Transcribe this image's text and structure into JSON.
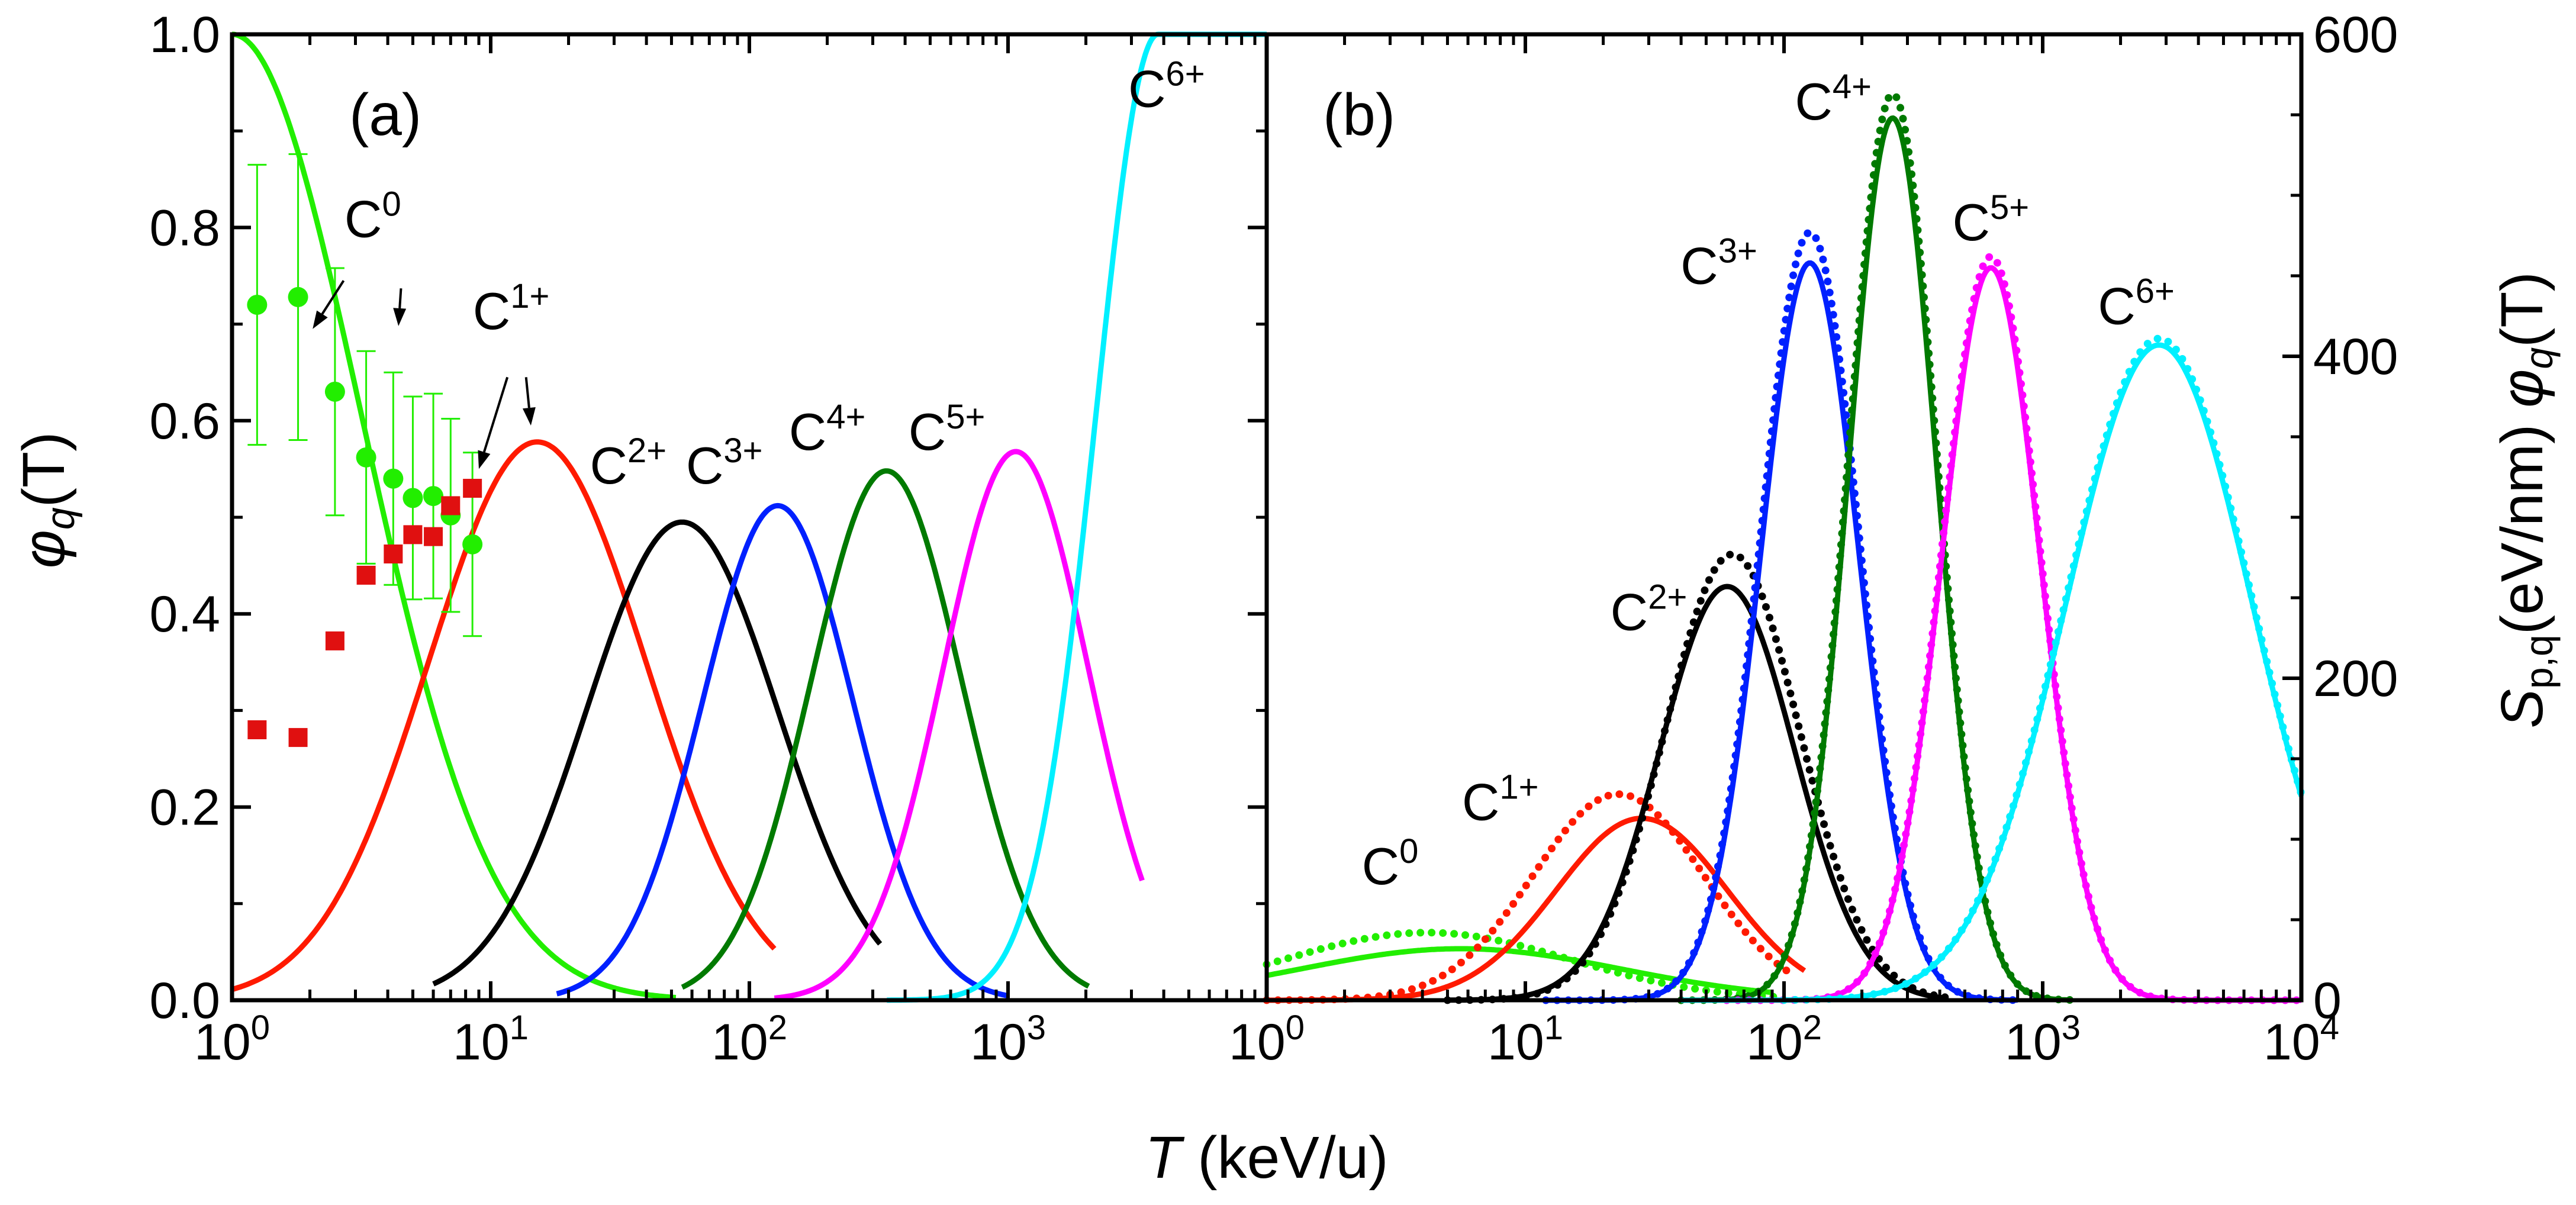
{
  "chart_data": [
    {
      "panel": "(a)",
      "type": "line",
      "xlabel_italic": "T",
      "xlabel_rest": " (keV/u)",
      "ylabel_symbol": "φ",
      "ylabel_sub": "q",
      "ylabel_rest": "(T)",
      "xscale": "log",
      "xlim": [
        1,
        10000
      ],
      "ylim": [
        0,
        1.0
      ],
      "x_ticks": [
        {
          "value": 1,
          "base": "10",
          "exp": "0"
        },
        {
          "value": 10,
          "base": "10",
          "exp": "1"
        },
        {
          "value": 100,
          "base": "10",
          "exp": "2"
        },
        {
          "value": 1000,
          "base": "10",
          "exp": "3"
        }
      ],
      "y_ticks": [
        {
          "value": 0.0,
          "label": "0.0"
        },
        {
          "value": 0.2,
          "label": "0.2"
        },
        {
          "value": 0.4,
          "label": "0.4"
        },
        {
          "value": 0.6,
          "label": "0.6"
        },
        {
          "value": 0.8,
          "label": "0.8"
        },
        {
          "value": 1.0,
          "label": "1.0"
        }
      ],
      "series": [
        {
          "name": "C0",
          "color": "#22ee00",
          "log_center": 0.0,
          "peak": 1.0,
          "sigma": 0.5,
          "left_flat": true,
          "x_min": 1,
          "x_max": 52
        },
        {
          "name": "C1+",
          "color": "#ff1a00",
          "log_center": 1.18,
          "peak": 0.578,
          "sigma": 0.42,
          "x_min": 1,
          "x_max": 125
        },
        {
          "name": "C2+",
          "color": "#000000",
          "log_center": 1.74,
          "peak": 0.495,
          "sigma": 0.37,
          "x_min": 6,
          "x_max": 320
        },
        {
          "name": "C3+",
          "color": "#0020ff",
          "log_center": 2.11,
          "peak": 0.512,
          "sigma": 0.29,
          "x_min": 18,
          "x_max": 1000
        },
        {
          "name": "C4+",
          "color": "#007a00",
          "log_center": 2.53,
          "peak": 0.548,
          "sigma": 0.29,
          "x_min": 55,
          "x_max": 2050
        },
        {
          "name": "C5+",
          "color": "#ff00ff",
          "log_center": 3.03,
          "peak": 0.568,
          "sigma": 0.28,
          "x_min": 125,
          "x_max": 3300
        },
        {
          "name": "C6+",
          "color": "#00f0ff",
          "log_center": 3.58,
          "peak": 1.0,
          "sigma": 0.24,
          "right_flat": true,
          "x_min": 340,
          "x_max": 10000
        }
      ],
      "scatter_series": [
        {
          "name": "C0 experiment",
          "color": "#22ee00",
          "marker": "circle",
          "points": [
            {
              "x": 1.25,
              "y": 0.72,
              "err": 0.145
            },
            {
              "x": 1.8,
              "y": 0.728,
              "err": 0.148
            },
            {
              "x": 2.5,
              "y": 0.63,
              "err": 0.128
            },
            {
              "x": 3.3,
              "y": 0.562,
              "err": 0.11
            },
            {
              "x": 4.2,
              "y": 0.54,
              "err": 0.11
            },
            {
              "x": 5.0,
              "y": 0.52,
              "err": 0.105
            },
            {
              "x": 6.0,
              "y": 0.522,
              "err": 0.106
            },
            {
              "x": 7.0,
              "y": 0.502,
              "err": 0.1
            },
            {
              "x": 8.5,
              "y": 0.472,
              "err": 0.095
            }
          ]
        },
        {
          "name": "C1+ experiment",
          "color": "#e01010",
          "marker": "square",
          "points": [
            {
              "x": 1.25,
              "y": 0.28
            },
            {
              "x": 1.8,
              "y": 0.272
            },
            {
              "x": 2.5,
              "y": 0.372
            },
            {
              "x": 3.3,
              "y": 0.44
            },
            {
              "x": 4.2,
              "y": 0.462
            },
            {
              "x": 5.0,
              "y": 0.482
            },
            {
              "x": 6.0,
              "y": 0.48
            },
            {
              "x": 7.0,
              "y": 0.512
            },
            {
              "x": 8.5,
              "y": 0.53
            }
          ]
        }
      ],
      "labels": [
        {
          "base": "C",
          "sup": "0",
          "x": 3.5,
          "y": 0.79
        },
        {
          "base": "C",
          "sup": "1+",
          "x": 12,
          "y": 0.695
        },
        {
          "base": "C",
          "sup": "2+",
          "x": 34,
          "y": 0.535
        },
        {
          "base": "C",
          "sup": "3+",
          "x": 80,
          "y": 0.535
        },
        {
          "base": "C",
          "sup": "4+",
          "x": 200,
          "y": 0.57
        },
        {
          "base": "C",
          "sup": "5+",
          "x": 580,
          "y": 0.57
        },
        {
          "base": "C",
          "sup": "6+",
          "x": 4100,
          "y": 0.925
        }
      ],
      "arrows": [
        {
          "from": [
            2.7,
            0.745
          ],
          "to": [
            2.05,
            0.695
          ]
        },
        {
          "from": [
            4.5,
            0.737
          ],
          "to": [
            4.4,
            0.698
          ]
        },
        {
          "from": [
            11.6,
            0.645
          ],
          "to": [
            9.0,
            0.55
          ]
        },
        {
          "from": [
            13.7,
            0.645
          ],
          "to": [
            14.3,
            0.595
          ]
        }
      ]
    },
    {
      "panel": "(b)",
      "type": "line",
      "xlabel_italic": "T",
      "xlabel_rest": " (keV/u)",
      "ylabel_main": "S",
      "ylabel_sub1": "p,q",
      "ylabel_mid": "(eV/nm) ",
      "ylabel_symbol": "φ",
      "ylabel_sub2": "q",
      "ylabel_rest": "(T)",
      "xscale": "log",
      "xlim": [
        1,
        10000
      ],
      "ylim": [
        0,
        600
      ],
      "y_axis_side": "right",
      "x_ticks": [
        {
          "value": 1,
          "base": "10",
          "exp": "0"
        },
        {
          "value": 10,
          "base": "10",
          "exp": "1"
        },
        {
          "value": 100,
          "base": "10",
          "exp": "2"
        },
        {
          "value": 1000,
          "base": "10",
          "exp": "3"
        },
        {
          "value": 10000,
          "base": "10",
          "exp": "4"
        }
      ],
      "y_ticks": [
        {
          "value": 0,
          "label": "0"
        },
        {
          "value": 200,
          "label": "200"
        },
        {
          "value": 400,
          "label": "400"
        },
        {
          "value": 600,
          "label": "600"
        }
      ],
      "series": [
        {
          "name": "C0",
          "color": "#22ee00",
          "style": "solid",
          "log_center": 0.75,
          "peak": 32,
          "sigma": 0.62,
          "x_min": 1,
          "x_max": 90
        },
        {
          "name": "C0",
          "color": "#22ee00",
          "style": "dotted",
          "log_center": 0.62,
          "peak": 42,
          "sigma": 0.55,
          "x_min": 1,
          "x_max": 100
        },
        {
          "name": "C1+",
          "color": "#ff1a00",
          "style": "solid",
          "log_center": 1.45,
          "peak": 113,
          "sigma": 0.33,
          "x_min": 1,
          "x_max": 120
        },
        {
          "name": "C1+",
          "color": "#ff1a00",
          "style": "dotted",
          "log_center": 1.36,
          "peak": 128,
          "sigma": 0.33,
          "x_min": 1,
          "x_max": 110
        },
        {
          "name": "C2+",
          "color": "#000000",
          "style": "solid",
          "log_center": 1.78,
          "peak": 257,
          "sigma": 0.26,
          "x_min": 5,
          "x_max": 420
        },
        {
          "name": "C2+",
          "color": "#000000",
          "style": "dotted",
          "log_center": 1.8,
          "peak": 277,
          "sigma": 0.26,
          "x_min": 5,
          "x_max": 420
        },
        {
          "name": "C3+",
          "color": "#0020ff",
          "style": "solid",
          "log_center": 2.1,
          "peak": 458,
          "sigma": 0.19,
          "x_min": 12,
          "x_max": 800
        },
        {
          "name": "C3+",
          "color": "#0020ff",
          "style": "dotted",
          "log_center": 2.1,
          "peak": 477,
          "sigma": 0.19,
          "x_min": 12,
          "x_max": 800
        },
        {
          "name": "C4+",
          "color": "#007a00",
          "style": "solid",
          "log_center": 2.42,
          "peak": 548,
          "sigma": 0.17,
          "x_min": 40,
          "x_max": 1300
        },
        {
          "name": "C4+",
          "color": "#007a00",
          "style": "dotted",
          "log_center": 2.42,
          "peak": 563,
          "sigma": 0.17,
          "x_min": 40,
          "x_max": 1300
        },
        {
          "name": "C5+",
          "color": "#ff00ff",
          "style": "solid",
          "log_center": 2.8,
          "peak": 455,
          "sigma": 0.19,
          "x_min": 60,
          "x_max": 10000
        },
        {
          "name": "C5+",
          "color": "#ff00ff",
          "style": "dotted",
          "log_center": 2.8,
          "peak": 462,
          "sigma": 0.19,
          "x_min": 60,
          "x_max": 10000
        },
        {
          "name": "C6+",
          "color": "#00f0ff",
          "style": "solid",
          "log_center": 3.45,
          "peak": 407,
          "sigma": 0.36,
          "x_min": 40,
          "x_max": 10000
        },
        {
          "name": "C6+",
          "color": "#00f0ff",
          "style": "dotted",
          "log_center": 3.45,
          "peak": 411,
          "sigma": 0.36,
          "x_min": 100,
          "x_max": 10000
        }
      ],
      "labels": [
        {
          "base": "C",
          "sup": "0",
          "x": 3.0,
          "y": 72
        },
        {
          "base": "C",
          "sup": "1+",
          "x": 8.0,
          "y": 112
        },
        {
          "base": "C",
          "sup": "2+",
          "x": 30,
          "y": 230
        },
        {
          "base": "C",
          "sup": "3+",
          "x": 56,
          "y": 445
        },
        {
          "base": "C",
          "sup": "4+",
          "x": 155,
          "y": 547
        },
        {
          "base": "C",
          "sup": "5+",
          "x": 630,
          "y": 472
        },
        {
          "base": "C",
          "sup": "6+",
          "x": 2300,
          "y": 420
        }
      ]
    }
  ]
}
